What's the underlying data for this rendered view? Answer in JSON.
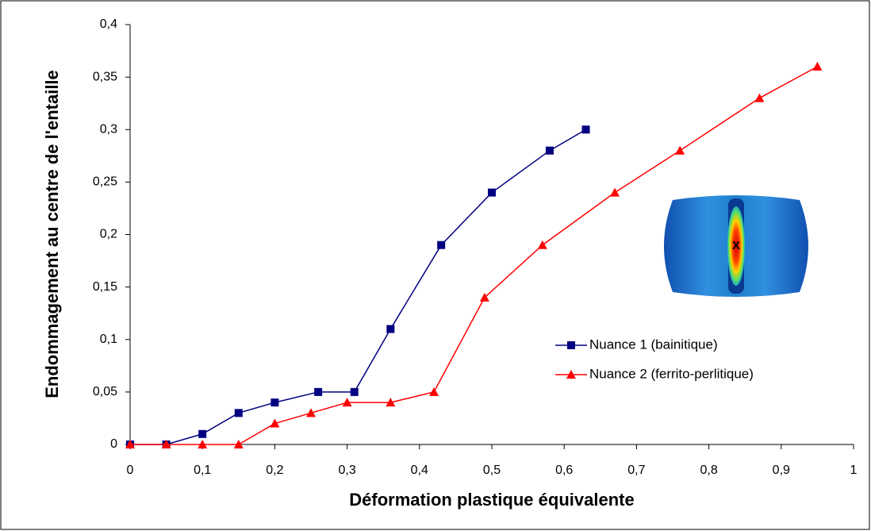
{
  "chart_data": {
    "type": "line",
    "x_label": "Déformation plastique équivalente",
    "y_label": "Endommagement au centre de l'entaille",
    "xlim": [
      0,
      1
    ],
    "ylim": [
      0,
      0.4
    ],
    "xticks": [
      0,
      {
        "value": 0.1,
        "label": "0,1"
      },
      {
        "value": 0.2,
        "label": "0,2"
      },
      {
        "value": 0.3,
        "label": "0,3"
      },
      {
        "value": 0.4,
        "label": "0,4"
      },
      {
        "value": 0.5,
        "label": "0,5"
      },
      {
        "value": 0.6,
        "label": "0,6"
      },
      {
        "value": 0.7,
        "label": "0,7"
      },
      {
        "value": 0.8,
        "label": "0,8"
      },
      {
        "value": 0.9,
        "label": "0,9"
      },
      1
    ],
    "yticks": [
      0,
      {
        "value": 0.05,
        "label": "0,05"
      },
      {
        "value": 0.1,
        "label": "0,1"
      },
      {
        "value": 0.15,
        "label": "0,15"
      },
      {
        "value": 0.2,
        "label": "0,2"
      },
      {
        "value": 0.25,
        "label": "0,25"
      },
      {
        "value": 0.3,
        "label": "0,3"
      },
      {
        "value": 0.35,
        "label": "0,35"
      },
      {
        "value": 0.4,
        "label": "0,4"
      }
    ],
    "grid": false,
    "inset_label": "X",
    "series": [
      {
        "name": "Nuance 1 (bainitique)",
        "color": "#000080",
        "marker": "square",
        "x": [
          0,
          0.05,
          0.1,
          0.15,
          0.2,
          0.26,
          0.31,
          0.36,
          0.43,
          0.5,
          0.58,
          0.63
        ],
        "values": [
          0,
          0,
          0.01,
          0.03,
          0.04,
          0.05,
          0.05,
          0.11,
          0.19,
          0.24,
          0.28,
          0.3
        ]
      },
      {
        "name": "Nuance 2 (ferrito-perlitique)",
        "color": "#ff0000",
        "marker": "triangle",
        "x": [
          0,
          0.05,
          0.1,
          0.15,
          0.2,
          0.25,
          0.3,
          0.36,
          0.42,
          0.49,
          0.57,
          0.67,
          0.76,
          0.87,
          0.95
        ],
        "values": [
          0,
          0,
          0,
          0,
          0.02,
          0.03,
          0.04,
          0.04,
          0.05,
          0.14,
          0.19,
          0.24,
          0.28,
          0.33,
          0.36
        ]
      }
    ]
  }
}
